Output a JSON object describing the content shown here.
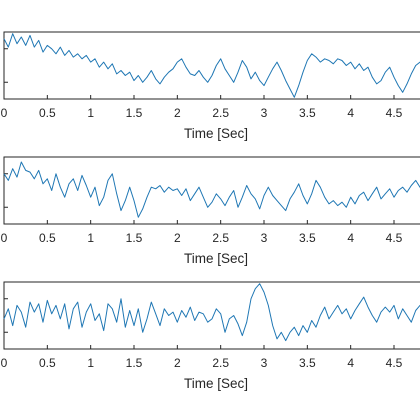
{
  "colors": {
    "line": "#1f77b4",
    "axis": "#262626",
    "background": "#ffffff"
  },
  "chart_data": [
    {
      "type": "line",
      "xlabel": "Time [Sec]",
      "xticks": [
        "0",
        "0.5",
        "1",
        "1.5",
        "2",
        "2.5",
        "3",
        "3.5",
        "4",
        "4.5"
      ],
      "xlim": [
        0,
        4.8
      ],
      "ylim": [
        -1.0,
        1.0
      ],
      "grid": false,
      "series": [
        {
          "x_step": 0.05,
          "values": [
            0.8,
            0.55,
            0.95,
            0.65,
            0.85,
            0.6,
            0.9,
            0.55,
            0.75,
            0.4,
            0.6,
            0.5,
            0.35,
            0.55,
            0.3,
            0.45,
            0.25,
            0.35,
            0.2,
            0.3,
            0.1,
            0.2,
            -0.05,
            0.1,
            -0.1,
            0.05,
            -0.25,
            -0.15,
            -0.3,
            -0.2,
            -0.45,
            -0.3,
            -0.5,
            -0.35,
            -0.15,
            -0.4,
            -0.55,
            -0.35,
            -0.2,
            -0.1,
            0.1,
            0.2,
            -0.05,
            -0.25,
            -0.3,
            -0.15,
            -0.35,
            -0.5,
            -0.3,
            0.0,
            0.2,
            -0.1,
            -0.3,
            -0.5,
            -0.2,
            0.15,
            -0.05,
            -0.4,
            -0.2,
            -0.45,
            -0.6,
            -0.35,
            -0.1,
            0.1,
            -0.15,
            -0.45,
            -0.7,
            -0.95,
            -0.6,
            -0.2,
            0.15,
            0.35,
            0.25,
            0.1,
            0.2,
            0.15,
            0.05,
            0.2,
            0.15,
            0.0,
            0.1,
            -0.1,
            0.05,
            -0.15,
            -0.05,
            -0.35,
            -0.55,
            -0.45,
            -0.2,
            -0.05,
            -0.35,
            -0.6,
            -0.8,
            -0.55,
            -0.25,
            0.0,
            0.1,
            0.2,
            0.3,
            0.2
          ]
        }
      ]
    },
    {
      "type": "line",
      "xlabel": "Time [Sec]",
      "xticks": [
        "0",
        "0.5",
        "1",
        "1.5",
        "2",
        "2.5",
        "3",
        "3.5",
        "4",
        "4.5"
      ],
      "xlim": [
        0,
        4.8
      ],
      "ylim": [
        -1.0,
        1.0
      ],
      "grid": false,
      "series": [
        {
          "x_step": 0.05,
          "values": [
            0.5,
            0.3,
            0.65,
            0.4,
            0.85,
            0.6,
            0.55,
            0.35,
            0.6,
            0.2,
            0.35,
            0.0,
            0.5,
            0.1,
            -0.2,
            0.2,
            0.35,
            0.0,
            0.45,
            0.15,
            -0.2,
            0.1,
            -0.45,
            -0.2,
            0.3,
            0.5,
            -0.1,
            -0.6,
            -0.3,
            0.1,
            -0.3,
            -0.8,
            -0.55,
            -0.2,
            0.1,
            0.05,
            0.15,
            -0.05,
            0.1,
            0.0,
            0.05,
            -0.15,
            0.05,
            -0.3,
            -0.1,
            0.1,
            -0.2,
            -0.5,
            -0.35,
            -0.1,
            -0.25,
            -0.45,
            -0.2,
            0.0,
            -0.5,
            -0.2,
            0.15,
            -0.1,
            -0.25,
            -0.55,
            -0.15,
            0.1,
            -0.15,
            -0.3,
            -0.45,
            -0.6,
            -0.25,
            -0.05,
            0.2,
            -0.15,
            -0.4,
            -0.1,
            0.3,
            0.1,
            -0.2,
            -0.4,
            -0.3,
            -0.45,
            -0.35,
            -0.5,
            -0.2,
            -0.4,
            -0.15,
            -0.05,
            -0.3,
            -0.1,
            0.1,
            -0.25,
            -0.1,
            0.05,
            -0.2,
            0.0,
            0.1,
            -0.05,
            0.15,
            0.3,
            0.1,
            0.25,
            0.1,
            0.0
          ]
        }
      ]
    },
    {
      "type": "line",
      "xlabel": "Time [Sec]",
      "xticks": [
        "0",
        "0.5",
        "1",
        "1.5",
        "2",
        "2.5",
        "3",
        "3.5",
        "4",
        "4.5"
      ],
      "xlim": [
        0,
        4.8
      ],
      "ylim": [
        -1.0,
        1.0
      ],
      "grid": false,
      "series": [
        {
          "x_step": 0.05,
          "values": [
            -0.1,
            0.2,
            -0.3,
            0.3,
            0.1,
            -0.35,
            0.4,
            0.1,
            0.35,
            -0.2,
            0.45,
            0.05,
            0.3,
            -0.1,
            0.35,
            -0.4,
            0.2,
            0.4,
            -0.35,
            0.1,
            0.35,
            -0.15,
            0.05,
            -0.45,
            0.35,
            0.2,
            -0.2,
            0.5,
            -0.35,
            0.15,
            -0.3,
            0.2,
            -0.5,
            -0.1,
            0.4,
            0.05,
            -0.3,
            0.2,
            0.0,
            0.1,
            -0.2,
            0.15,
            -0.05,
            0.25,
            -0.15,
            0.1,
            0.05,
            -0.2,
            -0.1,
            0.2,
            0.05,
            -0.5,
            -0.1,
            0.0,
            -0.25,
            -0.6,
            -0.2,
            0.5,
            0.8,
            0.95,
            0.7,
            0.3,
            -0.3,
            -0.7,
            -0.5,
            -0.75,
            -0.5,
            -0.35,
            -0.6,
            -0.3,
            -0.5,
            -0.15,
            -0.35,
            0.0,
            0.25,
            -0.1,
            0.1,
            0.3,
            0.05,
            0.2,
            -0.1,
            0.15,
            0.35,
            0.55,
            0.25,
            0.0,
            -0.2,
            0.1,
            0.25,
            0.1,
            0.3,
            -0.1,
            0.2,
            0.0,
            -0.2,
            0.15,
            0.3,
            0.1,
            0.2,
            0.0
          ]
        }
      ]
    }
  ]
}
